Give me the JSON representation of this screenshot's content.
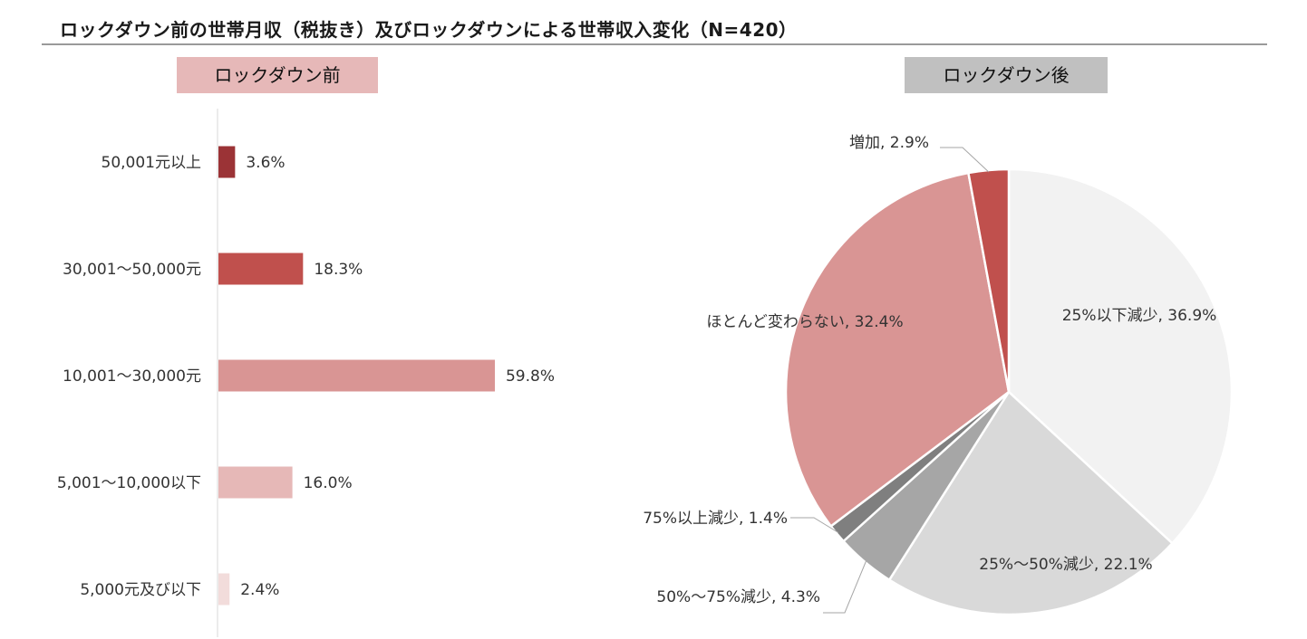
{
  "title": "ロックダウン前の世帯月収（税抜き）及びロックダウンによる世帯収入変化（N=420）",
  "colors": {
    "before_label_bg": "#e6b8b8",
    "after_label_bg": "#c0c0c0",
    "axis": "#d9d9d9",
    "slice_border": "#ffffff"
  },
  "chart_data": [
    {
      "type": "bar",
      "orientation": "horizontal",
      "title": "ロックダウン前",
      "categories": [
        "50,001元以上",
        "30,001～50,000元",
        "10,001～30,000元",
        "5,001～10,000以下",
        "5,000元及び以下"
      ],
      "values": [
        3.6,
        18.3,
        59.8,
        16.0,
        2.4
      ],
      "value_labels": [
        "3.6%",
        "18.3%",
        "59.8%",
        "16.0%",
        "2.4%"
      ],
      "bar_colors": [
        "#9b3336",
        "#c0504d",
        "#d99594",
        "#e6b8b7",
        "#f2dcdb"
      ],
      "xlim": [
        0,
        100
      ]
    },
    {
      "type": "pie",
      "title": "ロックダウン後",
      "start_angle_deg": 0,
      "direction": "clockwise",
      "slices": [
        {
          "label": "25%以下減少, 36.9%",
          "value": 36.9,
          "color": "#f2f2f2"
        },
        {
          "label": "25%～50%減少, 22.1%",
          "value": 22.1,
          "color": "#d9d9d9"
        },
        {
          "label": "50%～75%減少, 4.3%",
          "value": 4.3,
          "color": "#a6a6a6"
        },
        {
          "label": "75%以上減少, 1.4%",
          "value": 1.4,
          "color": "#7f7f7f"
        },
        {
          "label": "ほとんど変わらない, 32.4%",
          "value": 32.4,
          "color": "#d99594"
        },
        {
          "label": "増加, 2.9%",
          "value": 2.9,
          "color": "#c0504d"
        }
      ]
    }
  ]
}
